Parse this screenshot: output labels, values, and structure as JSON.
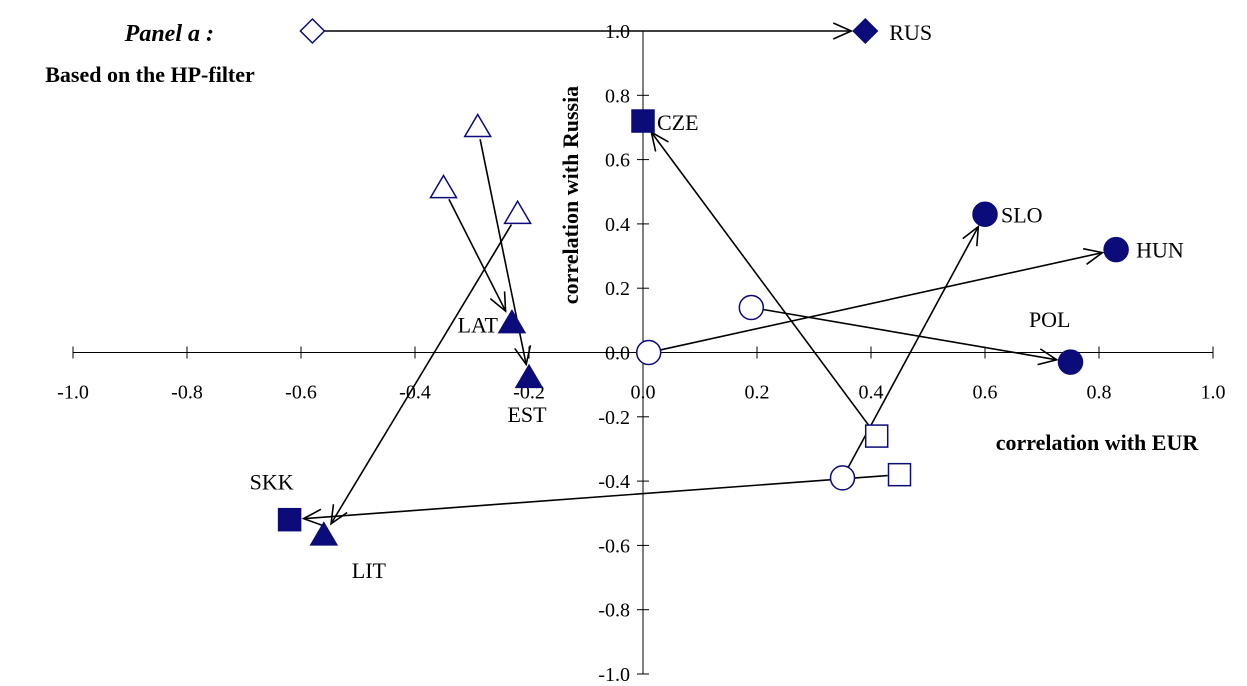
{
  "panel": {
    "title": "Panel a",
    "title_suffix": " :",
    "subtitle": "Based on the HP-filter"
  },
  "chart_data": {
    "type": "scatter",
    "xlabel": "correlation with EUR",
    "ylabel": "correlation with Russia",
    "xlim": [
      -1.0,
      1.0
    ],
    "ylim": [
      -1.0,
      1.0
    ],
    "xticks": [
      "-1.0",
      "-0.8",
      "-0.6",
      "-0.4",
      "-0.2",
      "0.0",
      "0.2",
      "0.4",
      "0.6",
      "0.8",
      "1.0"
    ],
    "yticks": [
      "-1.0",
      "-0.8",
      "-0.6",
      "-0.4",
      "-0.2",
      "0.0",
      "0.2",
      "0.4",
      "0.6",
      "0.8",
      "1.0"
    ],
    "marker_color": "#0b0b7a",
    "note": "Arrows connect hollow (earlier) markers to filled (later) markers for each country.",
    "countries": [
      {
        "label": "RUS",
        "marker": "diamond",
        "from": [
          -0.58,
          1.0
        ],
        "to": [
          0.39,
          1.0
        ]
      },
      {
        "label": "CZE",
        "marker": "square",
        "from": [
          0.41,
          -0.26
        ],
        "to": [
          0.0,
          0.72
        ]
      },
      {
        "label": "SKK",
        "marker": "square",
        "from": [
          0.45,
          -0.38
        ],
        "to": [
          -0.62,
          -0.52
        ]
      },
      {
        "label": "SLO",
        "marker": "circle",
        "from": [
          0.35,
          -0.39
        ],
        "to": [
          0.6,
          0.43
        ]
      },
      {
        "label": "HUN",
        "marker": "circle",
        "from": [
          0.01,
          0.0
        ],
        "to": [
          0.83,
          0.32
        ]
      },
      {
        "label": "POL",
        "marker": "circle",
        "from": [
          0.19,
          0.14
        ],
        "to": [
          0.75,
          -0.03
        ]
      },
      {
        "label": "LAT",
        "marker": "triangle",
        "from": [
          -0.35,
          0.51
        ],
        "to": [
          -0.23,
          0.09
        ]
      },
      {
        "label": "EST",
        "marker": "triangle",
        "from": [
          -0.29,
          0.7
        ],
        "to": [
          -0.2,
          -0.08
        ]
      },
      {
        "label": "LIT",
        "marker": "triangle",
        "from": [
          -0.22,
          0.43
        ],
        "to": [
          -0.56,
          -0.57
        ]
      }
    ]
  }
}
